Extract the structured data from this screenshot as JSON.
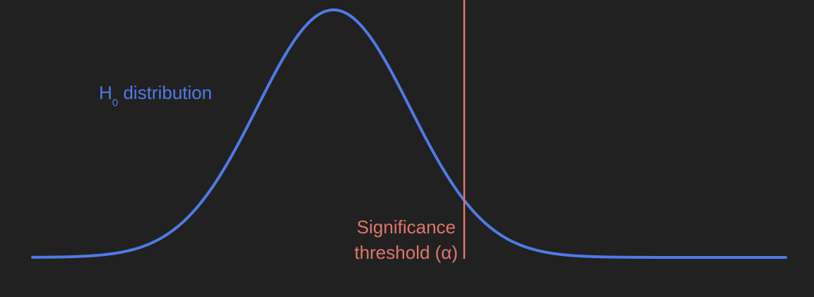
{
  "diagram": {
    "distribution_label": {
      "main": "H",
      "subscript": "0",
      "rest": " distribution"
    },
    "threshold_label": {
      "line1": "Significance",
      "line2": "threshold (α)"
    }
  },
  "colors": {
    "background": "#212121",
    "curve": "#4f7ae6",
    "threshold": "#e0756a"
  }
}
